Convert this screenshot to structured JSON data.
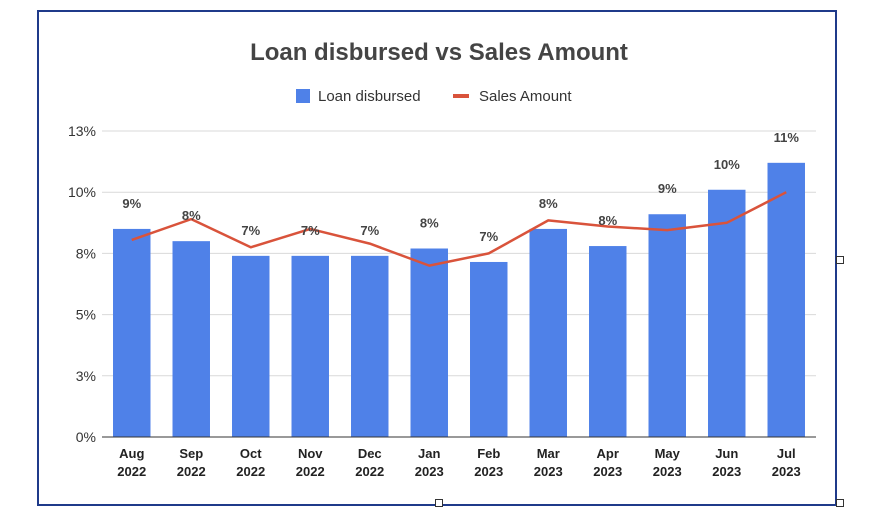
{
  "chart_data": {
    "type": "bar",
    "title": "Loan disbursed vs Sales Amount",
    "categories": [
      [
        "Aug",
        "2022"
      ],
      [
        "Sep",
        "2022"
      ],
      [
        "Oct",
        "2022"
      ],
      [
        "Nov",
        "2022"
      ],
      [
        "Dec",
        "2022"
      ],
      [
        "Jan",
        "2023"
      ],
      [
        "Feb",
        "2023"
      ],
      [
        "Mar",
        "2023"
      ],
      [
        "Apr",
        "2023"
      ],
      [
        "May",
        "2023"
      ],
      [
        "Jun",
        "2023"
      ],
      [
        "Jul",
        "2023"
      ]
    ],
    "yticks": [
      "0%",
      "3%",
      "5%",
      "8%",
      "10%",
      "13%"
    ],
    "ylim": [
      0,
      12.5
    ],
    "ystep": 2.5,
    "series": [
      {
        "name": "Loan disbursed",
        "kind": "bar",
        "color": "#4f81e8",
        "values": [
          8.5,
          8.0,
          7.4,
          7.4,
          7.4,
          7.7,
          7.15,
          8.5,
          7.8,
          9.1,
          10.1,
          11.2
        ],
        "labels": [
          "9%",
          "8%",
          "7%",
          "7%",
          "7%",
          "8%",
          "7%",
          "8%",
          "8%",
          "9%",
          "10%",
          "11%"
        ]
      },
      {
        "name": "Sales Amount",
        "kind": "line",
        "color": "#d9533b",
        "values": [
          8.05,
          8.9,
          7.75,
          8.5,
          7.9,
          7.0,
          7.5,
          8.85,
          8.6,
          8.45,
          8.75,
          10.0
        ]
      }
    ],
    "legend": "top",
    "grid": true
  }
}
